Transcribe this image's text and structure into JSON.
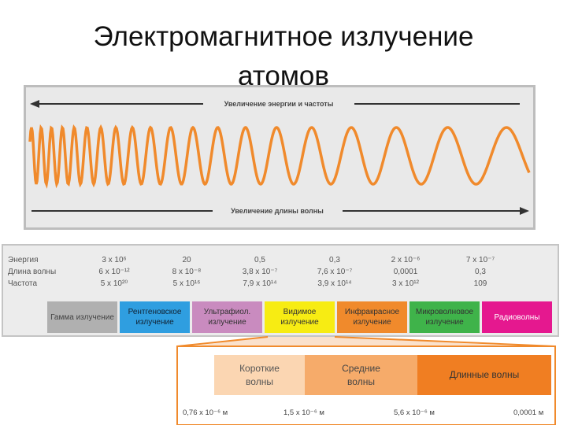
{
  "header": {
    "title": "Электромагнитное излучение атомов"
  },
  "spectrum": {
    "arrow_top": "Увеличение энергии и частоты",
    "arrow_bottom": "Увеличение длины волны"
  },
  "table": {
    "row_labels": [
      "Энергия",
      "Длина волны",
      "Частота"
    ],
    "rows": [
      [
        "3 x 10⁶",
        "20",
        "0,5",
        "0,3",
        "2 x 10⁻⁶",
        "7 x 10⁻⁷"
      ],
      [
        "6 x 10⁻¹²",
        "8 x 10⁻⁸",
        "3,8 x 10⁻⁷",
        "7,6 x 10⁻⁷",
        "0,0001",
        "0,3"
      ],
      [
        "5 x 10²⁰",
        "5 x 10¹⁶",
        "7,9 x 10¹⁴",
        "3,9 x 10¹⁴",
        "3 x 10¹²",
        "109"
      ]
    ]
  },
  "bands": [
    "Гамма излучение",
    "Рентгеновское излучение",
    "Ультрафиол. излучение",
    "Видимое излучение",
    "Инфракрасное излучение",
    "Микроволновое излучение",
    "Радиоволны"
  ],
  "detail": {
    "ranges": [
      "Короткие волны",
      "Средние волны",
      "Длинные волны"
    ],
    "scale": [
      "0,76 x 10⁻⁶ м",
      "1,5 x 10⁻⁶ м",
      "5,6 x 10⁻⁶ м",
      "0,0001 м"
    ]
  }
}
